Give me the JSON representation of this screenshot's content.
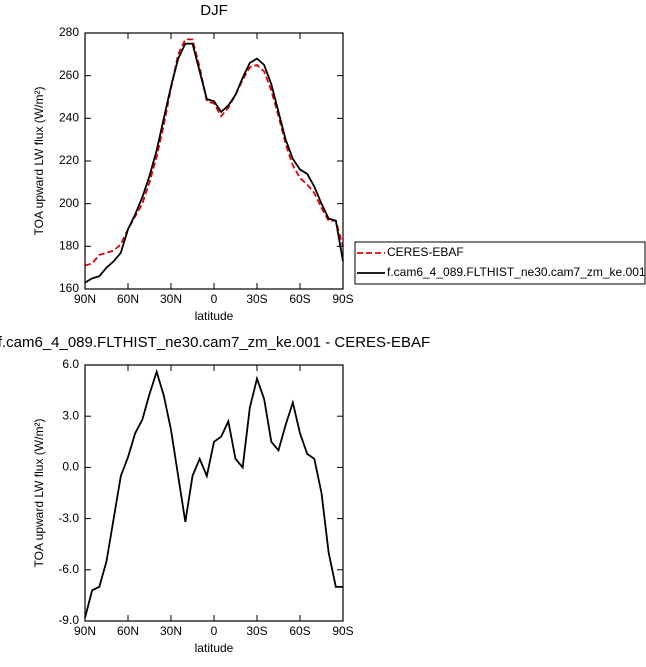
{
  "chart_data": [
    {
      "type": "line",
      "title": "DJF",
      "x_label": "latitude",
      "y_label": "TOA upward LW flux (W/m²)",
      "x": [
        90,
        85,
        80,
        75,
        70,
        65,
        60,
        55,
        50,
        45,
        40,
        35,
        30,
        25,
        20,
        15,
        10,
        5,
        0,
        -5,
        -10,
        -15,
        -20,
        -25,
        -30,
        -35,
        -40,
        -45,
        -50,
        -55,
        -60,
        -65,
        -70,
        -75,
        -80,
        -85,
        -90
      ],
      "xlim": [
        90,
        -90
      ],
      "xticks": [
        {
          "value": 90,
          "label": "90N"
        },
        {
          "value": 60,
          "label": "60N"
        },
        {
          "value": 30,
          "label": "30N"
        },
        0,
        {
          "value": -30,
          "label": "30S"
        },
        {
          "value": -60,
          "label": "60S"
        },
        {
          "value": -90,
          "label": "90S"
        }
      ],
      "ylim": [
        160,
        280
      ],
      "yticks": [
        160,
        180,
        200,
        220,
        240,
        260,
        280
      ],
      "legend": "right",
      "series": [
        {
          "name": "CERES-EBAF",
          "color": "#e00000",
          "linestyle": "dashed",
          "values": [
            171,
            172,
            176,
            177,
            178,
            181,
            188,
            194,
            200,
            210,
            222,
            237,
            254,
            270,
            277,
            277,
            264,
            248,
            247,
            241,
            245,
            251,
            258,
            264,
            265,
            262,
            253,
            241,
            228,
            218,
            212,
            209,
            205,
            198,
            192,
            192,
            180
          ]
        },
        {
          "name": "f.cam6_4_089.FLTHIST_ne30.cam7_zm_ke.001",
          "color": "#000000",
          "linestyle": "solid",
          "values": [
            163,
            165,
            166,
            170,
            173,
            177,
            188,
            195,
            203,
            213,
            225,
            240,
            255,
            268,
            275,
            275,
            262,
            249,
            248,
            243,
            246,
            251,
            259,
            266,
            268,
            265,
            256,
            243,
            230,
            221,
            216,
            214,
            208,
            200,
            193,
            192,
            173
          ]
        }
      ]
    },
    {
      "type": "line",
      "title": "f.cam6_4_089.FLTHIST_ne30.cam7_zm_ke.001 - CERES-EBAF",
      "x_label": "latitude",
      "y_label": "TOA upward LW flux (W/m²)",
      "x": [
        90,
        85,
        80,
        75,
        70,
        65,
        60,
        55,
        50,
        45,
        40,
        35,
        30,
        25,
        20,
        15,
        10,
        5,
        0,
        -5,
        -10,
        -15,
        -20,
        -25,
        -30,
        -35,
        -40,
        -45,
        -50,
        -55,
        -60,
        -65,
        -70,
        -75,
        -80,
        -85,
        -90
      ],
      "xlim": [
        90,
        -90
      ],
      "xticks": [
        {
          "value": 90,
          "label": "90N"
        },
        {
          "value": 60,
          "label": "60N"
        },
        {
          "value": 30,
          "label": "30N"
        },
        0,
        {
          "value": -30,
          "label": "30S"
        },
        {
          "value": -60,
          "label": "60S"
        },
        {
          "value": -90,
          "label": "90S"
        }
      ],
      "ylim": [
        -9,
        6
      ],
      "yticks": [
        {
          "value": -9,
          "label": "-9.0"
        },
        {
          "value": -6,
          "label": "-6.0"
        },
        {
          "value": -3,
          "label": "-3.0"
        },
        {
          "value": 0,
          "label": "0.0"
        },
        {
          "value": 3,
          "label": "3.0"
        },
        {
          "value": 6,
          "label": "6.0"
        }
      ],
      "series": [
        {
          "color": "#000000",
          "linestyle": "solid",
          "values": [
            -8.8,
            -7.2,
            -7.0,
            -5.5,
            -3.0,
            -0.5,
            0.6,
            2.0,
            2.8,
            4.3,
            5.6,
            4.2,
            2.2,
            -0.5,
            -3.2,
            -0.5,
            0.5,
            -0.5,
            1.5,
            1.8,
            2.7,
            0.5,
            0.0,
            3.5,
            5.2,
            4.0,
            1.5,
            1.0,
            2.5,
            3.8,
            2.0,
            0.8,
            0.5,
            -1.5,
            -5.0,
            -7.0,
            -7.0
          ]
        }
      ]
    }
  ]
}
